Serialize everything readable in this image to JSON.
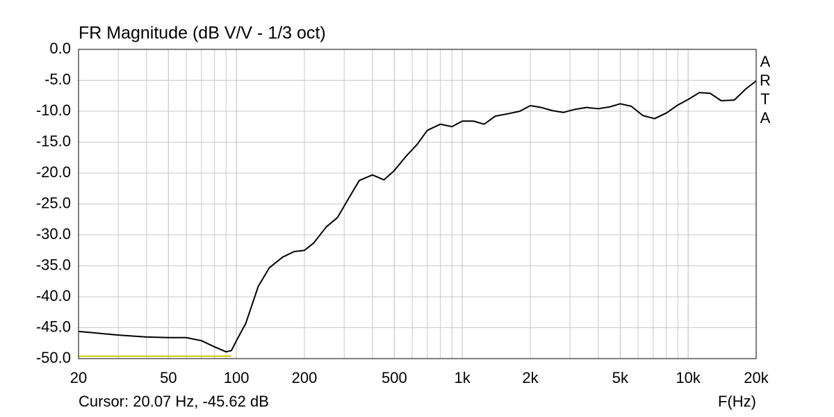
{
  "chart_data": {
    "type": "line",
    "title": "FR Magnitude (dB V/V - 1/3 oct)",
    "x_label": "F(Hz)",
    "cursor_text": "Cursor: 20.07 Hz, -45.62 dB",
    "watermark": "ARTA",
    "x_log": true,
    "grid": true,
    "xlim": [
      20,
      20000
    ],
    "ylim": [
      -50,
      0
    ],
    "xticks": [
      20,
      50,
      100,
      200,
      500,
      {
        "value": 1000,
        "label": "1k"
      },
      {
        "value": 2000,
        "label": "2k"
      },
      {
        "value": 5000,
        "label": "5k"
      },
      {
        "value": 10000,
        "label": "10k"
      },
      {
        "value": 20000,
        "label": "20k"
      }
    ],
    "yticks": [
      {
        "value": 0,
        "label": "0.0"
      },
      {
        "value": -5,
        "label": "-5.0"
      },
      {
        "value": -10,
        "label": "-10.0"
      },
      {
        "value": -15,
        "label": "-15.0"
      },
      {
        "value": -20,
        "label": "-20.0"
      },
      {
        "value": -25,
        "label": "-25.0"
      },
      {
        "value": -30,
        "label": "-30.0"
      },
      {
        "value": -35,
        "label": "-35.0"
      },
      {
        "value": -40,
        "label": "-40.0"
      },
      {
        "value": -45,
        "label": "-45.0"
      },
      {
        "value": -50,
        "label": "-50.0"
      }
    ],
    "series": [
      {
        "color": "#000000",
        "x": [
          20,
          30,
          40,
          50,
          60,
          70,
          80,
          90,
          95,
          100,
          110,
          125,
          140,
          160,
          180,
          200,
          220,
          250,
          280,
          315,
          350,
          400,
          450,
          500,
          560,
          630,
          700,
          800,
          900,
          1000,
          1120,
          1250,
          1400,
          1600,
          1800,
          2000,
          2240,
          2500,
          2800,
          3150,
          3550,
          4000,
          4500,
          5000,
          5600,
          6300,
          7100,
          8000,
          9000,
          10000,
          11200,
          12500,
          14000,
          16000,
          18000,
          20000
        ],
        "values": [
          -45.6,
          -46.2,
          -46.5,
          -46.6,
          -46.6,
          -47.1,
          -48.1,
          -48.9,
          -48.7,
          -47.1,
          -44.3,
          -38.3,
          -35.3,
          -33.6,
          -32.7,
          -32.5,
          -31.3,
          -28.7,
          -27.2,
          -24.0,
          -21.2,
          -20.3,
          -21.1,
          -19.6,
          -17.4,
          -15.4,
          -13.1,
          -12.1,
          -12.5,
          -11.6,
          -11.6,
          -12.1,
          -10.8,
          -10.4,
          -10.0,
          -9.1,
          -9.4,
          -9.9,
          -10.2,
          -9.7,
          -9.4,
          -9.6,
          -9.3,
          -8.8,
          -9.2,
          -10.7,
          -11.2,
          -10.3,
          -9.0,
          -8.1,
          -7.0,
          -7.1,
          -8.3,
          -8.2,
          -6.4,
          -5.1
        ]
      },
      {
        "color": "#c8c800",
        "x": [
          20,
          95
        ],
        "values": [
          -49.6,
          -49.6
        ]
      }
    ]
  }
}
